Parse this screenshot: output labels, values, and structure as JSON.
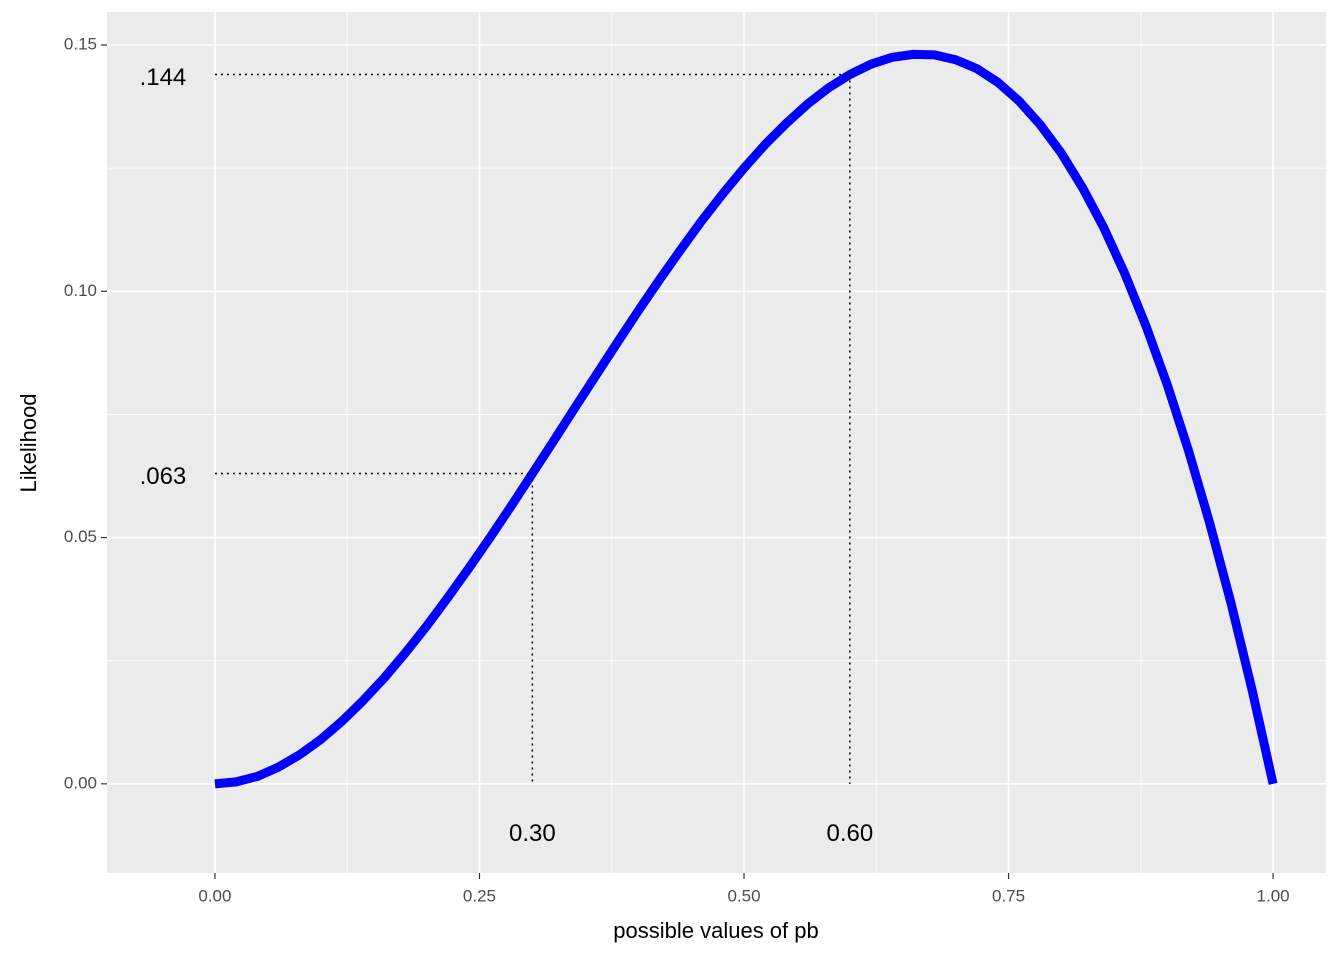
{
  "chart_data": {
    "type": "line",
    "x_label": "possible values of pb",
    "y_label": "Likelihood",
    "x": [
      0,
      0.02,
      0.04,
      0.06,
      0.08,
      0.1,
      0.12,
      0.14,
      0.16,
      0.18,
      0.2,
      0.22,
      0.24,
      0.26,
      0.28,
      0.3,
      0.32,
      0.34,
      0.36,
      0.38,
      0.4,
      0.42,
      0.44,
      0.46,
      0.48,
      0.5,
      0.52,
      0.54,
      0.56,
      0.58,
      0.6,
      0.62,
      0.64,
      0.66,
      0.68,
      0.7,
      0.72,
      0.74,
      0.76,
      0.78,
      0.8,
      0.82,
      0.84,
      0.86,
      0.88,
      0.9,
      0.92,
      0.94,
      0.96,
      0.98,
      1
    ],
    "values": [
      0,
      0.0004,
      0.0015,
      0.0034,
      0.0059,
      0.009,
      0.0127,
      0.0169,
      0.0215,
      0.0266,
      0.032,
      0.0378,
      0.0438,
      0.05,
      0.0564,
      0.063,
      0.0696,
      0.0763,
      0.0829,
      0.0895,
      0.096,
      0.1023,
      0.1084,
      0.1143,
      0.1198,
      0.125,
      0.1298,
      0.1341,
      0.138,
      0.1413,
      0.144,
      0.1461,
      0.1475,
      0.1481,
      0.148,
      0.147,
      0.1452,
      0.1424,
      0.1386,
      0.1338,
      0.128,
      0.121,
      0.1129,
      0.1035,
      0.0929,
      0.081,
      0.0677,
      0.053,
      0.0369,
      0.0192,
      0
    ],
    "color": "#0000ff",
    "xlim": [
      -0.102,
      1.05
    ],
    "ylim": [
      -0.0181,
      0.1567
    ],
    "xticks": [
      {
        "value": 0,
        "label": "0.00"
      },
      0.25,
      {
        "value": 0.5,
        "label": "0.50"
      },
      0.75,
      {
        "value": 1,
        "label": "1.00"
      }
    ],
    "yticks": [
      {
        "value": 0,
        "label": "0.00"
      },
      0.05,
      {
        "value": 0.1,
        "label": "0.10"
      },
      0.15
    ],
    "grid": true,
    "annotations": [
      {
        "x": 0.3,
        "y": 0.063,
        "y_text": ".063",
        "x_text": "0.30"
      },
      {
        "x": 0.6,
        "y": 0.144,
        "y_text": ".144",
        "x_text": "0.60"
      }
    ]
  }
}
